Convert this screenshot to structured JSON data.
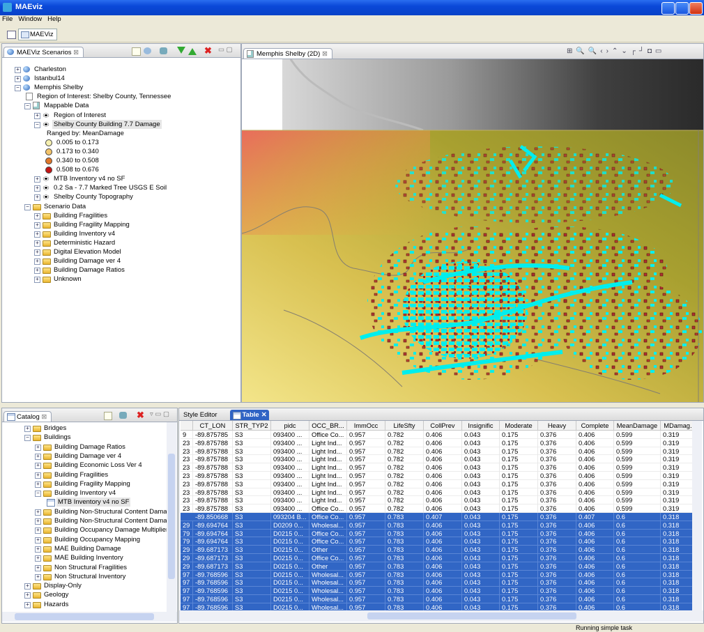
{
  "window": {
    "title": "MAEviz"
  },
  "menu": [
    "File",
    "Window",
    "Help"
  ],
  "perspective": "MAEViz",
  "scenarios_panel": {
    "tab": "MAEViz Scenarios",
    "tree": [
      {
        "label": "Charleston",
        "icon": "globe",
        "expander": "plus"
      },
      {
        "label": "Istanbul14",
        "icon": "globe",
        "expander": "plus"
      },
      {
        "label": "Memphis Shelby",
        "icon": "globe",
        "expander": "minus",
        "children": [
          {
            "label": "Region of Interest: Shelby County, Tennessee",
            "icon": "file"
          },
          {
            "label": "Mappable Data",
            "icon": "map",
            "expander": "minus",
            "children": [
              {
                "label": "Region of Interest",
                "icon": "eye",
                "expander": "plus"
              },
              {
                "label": "Shelby County Building 7.7 Damage",
                "icon": "eye",
                "expander": "minus",
                "selected": true,
                "children": [
                  {
                    "label": "Ranged by: MeanDamage"
                  },
                  {
                    "label": "0.005 to 0.173",
                    "icon": "legend",
                    "color": "#f6f0b0"
                  },
                  {
                    "label": "0.173 to 0.340",
                    "icon": "legend",
                    "color": "#f3c46a"
                  },
                  {
                    "label": "0.340 to 0.508",
                    "icon": "legend",
                    "color": "#e0782a"
                  },
                  {
                    "label": "0.508 to 0.676",
                    "icon": "legend",
                    "color": "#c41616"
                  }
                ]
              },
              {
                "label": "MTB Inventory v4 no SF",
                "icon": "eye",
                "expander": "plus"
              },
              {
                "label": "0.2 Sa - 7.7 Marked Tree USGS E Soil",
                "icon": "eye",
                "expander": "plus"
              },
              {
                "label": "Shelby County Topography",
                "icon": "eye",
                "expander": "plus"
              }
            ]
          },
          {
            "label": "Scenario Data",
            "icon": "folder",
            "expander": "minus",
            "children": [
              {
                "label": "Building Fragilities",
                "icon": "folder",
                "expander": "plus"
              },
              {
                "label": "Building Fragility Mapping",
                "icon": "folder",
                "expander": "plus"
              },
              {
                "label": "Building Inventory v4",
                "icon": "folder",
                "expander": "plus"
              },
              {
                "label": "Deterministic Hazard",
                "icon": "folder",
                "expander": "plus"
              },
              {
                "label": "Digital Elevation Model",
                "icon": "folder",
                "expander": "plus"
              },
              {
                "label": "Building Damage ver 4",
                "icon": "folder",
                "expander": "plus"
              },
              {
                "label": "Building Damage Ratios",
                "icon": "folder",
                "expander": "plus"
              },
              {
                "label": "Unknown",
                "icon": "folder",
                "expander": "plus"
              }
            ]
          }
        ]
      }
    ]
  },
  "map_panel": {
    "tab": "Memphis Shelby (2D)"
  },
  "catalog_panel": {
    "tab": "Catalog",
    "tree": [
      {
        "label": "Bridges",
        "icon": "folder",
        "expander": "plus"
      },
      {
        "label": "Buildings",
        "icon": "folder",
        "expander": "minus",
        "children": [
          {
            "label": "Building Damage Ratios",
            "icon": "folder",
            "expander": "plus"
          },
          {
            "label": "Building Damage ver 4",
            "icon": "folder",
            "expander": "plus"
          },
          {
            "label": "Building Economic Loss Ver 4",
            "icon": "folder",
            "expander": "plus"
          },
          {
            "label": "Building Fragilities",
            "icon": "folder",
            "expander": "plus"
          },
          {
            "label": "Building Fragility Mapping",
            "icon": "folder",
            "expander": "plus"
          },
          {
            "label": "Building Inventory v4",
            "icon": "folder",
            "expander": "minus",
            "children": [
              {
                "label": "MTB Inventory v4 no SF",
                "icon": "table",
                "selected": true
              }
            ]
          },
          {
            "label": "Building Non-Structural Content Damage",
            "icon": "folder",
            "expander": "plus"
          },
          {
            "label": "Building Non-Structural Content Damage V",
            "icon": "folder",
            "expander": "plus"
          },
          {
            "label": "Building Occupancy Damage Multipliers",
            "icon": "folder",
            "expander": "plus"
          },
          {
            "label": "Building Occupancy Mapping",
            "icon": "folder",
            "expander": "plus"
          },
          {
            "label": "MAE Building Damage",
            "icon": "folder",
            "expander": "plus"
          },
          {
            "label": "MAE Building Inventory",
            "icon": "folder",
            "expander": "plus"
          },
          {
            "label": "Non Structural Fragilities",
            "icon": "folder",
            "expander": "plus"
          },
          {
            "label": "Non Structural Inventory",
            "icon": "folder",
            "expander": "plus"
          }
        ]
      },
      {
        "label": "Display-Only",
        "icon": "folder",
        "expander": "plus"
      },
      {
        "label": "Geology",
        "icon": "folder",
        "expander": "plus"
      },
      {
        "label": "Hazards",
        "icon": "folder",
        "expander": "plus"
      }
    ]
  },
  "table_panel": {
    "tabs": [
      "Style Editor",
      "Table"
    ],
    "active_tab": 1,
    "columns": [
      "CT_LON",
      "STR_TYP2",
      "pidc",
      "OCC_BR...",
      "ImmOcc",
      "LifeSfty",
      "CollPrev",
      "Insignific",
      "Moderate",
      "Heavy",
      "Complete",
      "MeanDamage",
      "MDamag..."
    ],
    "rows": [
      [
        "9",
        "-89.875785",
        "S3",
        "093400 ...",
        "Office Co...",
        "0.957",
        "0.782",
        "0.406",
        "0.043",
        "0.175",
        "0.376",
        "0.406",
        "0.599",
        "0.319"
      ],
      [
        "23",
        "-89.875788",
        "S3",
        "093400 ...",
        "Light Ind...",
        "0.957",
        "0.782",
        "0.406",
        "0.043",
        "0.175",
        "0.376",
        "0.406",
        "0.599",
        "0.319"
      ],
      [
        "23",
        "-89.875788",
        "S3",
        "093400 ...",
        "Light Ind...",
        "0.957",
        "0.782",
        "0.406",
        "0.043",
        "0.175",
        "0.376",
        "0.406",
        "0.599",
        "0.319"
      ],
      [
        "23",
        "-89.875788",
        "S3",
        "093400 ...",
        "Light Ind...",
        "0.957",
        "0.782",
        "0.406",
        "0.043",
        "0.175",
        "0.376",
        "0.406",
        "0.599",
        "0.319"
      ],
      [
        "23",
        "-89.875788",
        "S3",
        "093400 ...",
        "Light Ind...",
        "0.957",
        "0.782",
        "0.406",
        "0.043",
        "0.175",
        "0.376",
        "0.406",
        "0.599",
        "0.319"
      ],
      [
        "23",
        "-89.875788",
        "S3",
        "093400 ...",
        "Light Ind...",
        "0.957",
        "0.782",
        "0.406",
        "0.043",
        "0.175",
        "0.376",
        "0.406",
        "0.599",
        "0.319"
      ],
      [
        "23",
        "-89.875788",
        "S3",
        "093400 ...",
        "Light Ind...",
        "0.957",
        "0.782",
        "0.406",
        "0.043",
        "0.175",
        "0.376",
        "0.406",
        "0.599",
        "0.319"
      ],
      [
        "23",
        "-89.875788",
        "S3",
        "093400 ...",
        "Light Ind...",
        "0.957",
        "0.782",
        "0.406",
        "0.043",
        "0.175",
        "0.376",
        "0.406",
        "0.599",
        "0.319"
      ],
      [
        "23",
        "-89.875788",
        "S3",
        "093400 ...",
        "Light Ind...",
        "0.957",
        "0.782",
        "0.406",
        "0.043",
        "0.175",
        "0.376",
        "0.406",
        "0.599",
        "0.319"
      ],
      [
        "23",
        "-89.875788",
        "S3",
        "093400 ...",
        "Office Co...",
        "0.957",
        "0.782",
        "0.406",
        "0.043",
        "0.175",
        "0.376",
        "0.406",
        "0.599",
        "0.319"
      ],
      [
        null,
        "-89.850668",
        "S3",
        "093204 B...",
        "Office Co...",
        "0.957",
        "0.783",
        "0.407",
        "0.043",
        "0.175",
        "0.376",
        "0.407",
        "0.6",
        "0.318"
      ],
      [
        "29",
        "-89.694764",
        "S3",
        "D0209 0...",
        "Wholesal...",
        "0.957",
        "0.783",
        "0.406",
        "0.043",
        "0.175",
        "0.376",
        "0.406",
        "0.6",
        "0.318"
      ],
      [
        "79",
        "-89.694764",
        "S3",
        "D0215 0...",
        "Office Co...",
        "0.957",
        "0.783",
        "0.406",
        "0.043",
        "0.175",
        "0.376",
        "0.406",
        "0.6",
        "0.318"
      ],
      [
        "79",
        "-89.694764",
        "S3",
        "D0215 0...",
        "Office Co...",
        "0.957",
        "0.783",
        "0.406",
        "0.043",
        "0.175",
        "0.376",
        "0.406",
        "0.6",
        "0.318"
      ],
      [
        "29",
        "-89.687173",
        "S3",
        "D0215 0...",
        "Other",
        "0.957",
        "0.783",
        "0.406",
        "0.043",
        "0.175",
        "0.376",
        "0.406",
        "0.6",
        "0.318"
      ],
      [
        "29",
        "-89.687173",
        "S3",
        "D0215 0...",
        "Office Co...",
        "0.957",
        "0.783",
        "0.406",
        "0.043",
        "0.175",
        "0.376",
        "0.406",
        "0.6",
        "0.318"
      ],
      [
        "29",
        "-89.687173",
        "S3",
        "D0215 0...",
        "Other",
        "0.957",
        "0.783",
        "0.406",
        "0.043",
        "0.175",
        "0.376",
        "0.406",
        "0.6",
        "0.318"
      ],
      [
        "97",
        "-89.768596",
        "S3",
        "D0215 0...",
        "Wholesal...",
        "0.957",
        "0.783",
        "0.406",
        "0.043",
        "0.175",
        "0.376",
        "0.406",
        "0.6",
        "0.318"
      ],
      [
        "97",
        "-89.768596",
        "S3",
        "D0215 0...",
        "Wholesal...",
        "0.957",
        "0.783",
        "0.406",
        "0.043",
        "0.175",
        "0.376",
        "0.406",
        "0.6",
        "0.318"
      ],
      [
        "97",
        "-89.768596",
        "S3",
        "D0215 0...",
        "Wholesal...",
        "0.957",
        "0.783",
        "0.406",
        "0.043",
        "0.175",
        "0.376",
        "0.406",
        "0.6",
        "0.318"
      ],
      [
        "97",
        "-89.768596",
        "S3",
        "D0215 0...",
        "Wholesal...",
        "0.957",
        "0.783",
        "0.406",
        "0.043",
        "0.175",
        "0.376",
        "0.406",
        "0.6",
        "0.318"
      ],
      [
        "97",
        "-89.768596",
        "S3",
        "D0215 0...",
        "Wholesal...",
        "0.957",
        "0.783",
        "0.406",
        "0.043",
        "0.175",
        "0.376",
        "0.406",
        "0.6",
        "0.318"
      ]
    ],
    "selected_rows": [
      10,
      11,
      12,
      13,
      14,
      15,
      16,
      17,
      18,
      19,
      20,
      21
    ]
  },
  "status": "Running simple task"
}
